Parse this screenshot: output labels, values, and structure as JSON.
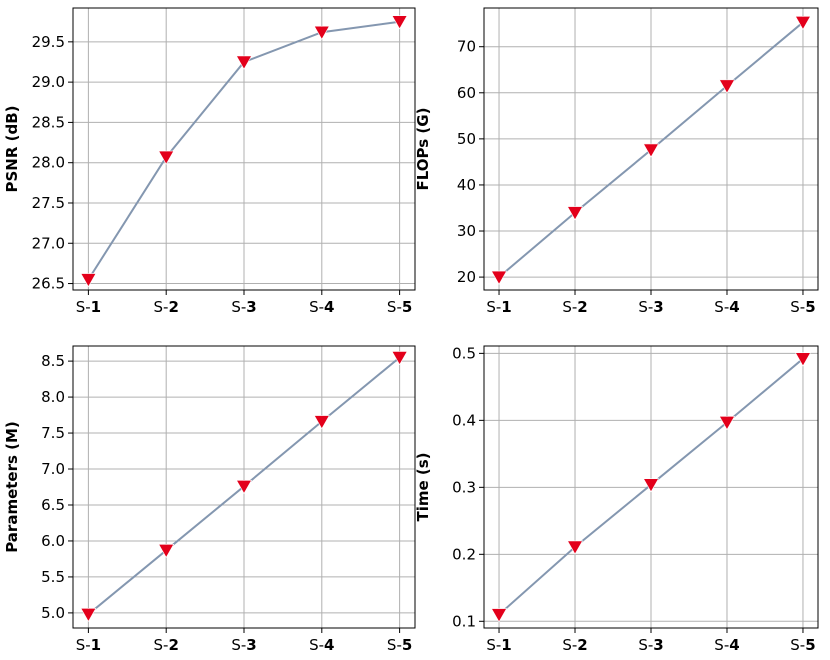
{
  "chart_data": [
    {
      "type": "line",
      "categories": [
        "S-1",
        "S-2",
        "S-3",
        "S-4",
        "S-5"
      ],
      "category_prefix": "S-",
      "category_numbers": [
        "1",
        "2",
        "3",
        "4",
        "5"
      ],
      "values": [
        26.55,
        28.07,
        29.25,
        29.62,
        29.75
      ],
      "ylabel": "PSNR (dB)",
      "ylim": [
        26.42,
        29.92
      ],
      "yticks": [
        26.5,
        27.0,
        27.5,
        28.0,
        28.5,
        29.0,
        29.5
      ],
      "ytick_labels": [
        "26.5",
        "27.0",
        "27.5",
        "28.0",
        "28.5",
        "29.0",
        "29.5"
      ],
      "grid": true,
      "line_color": "#8497b0",
      "marker_color": "#e3001b"
    },
    {
      "type": "line",
      "categories": [
        "S-1",
        "S-2",
        "S-3",
        "S-4",
        "S-5"
      ],
      "category_prefix": "S-",
      "category_numbers": [
        "1",
        "2",
        "3",
        "4",
        "5"
      ],
      "values": [
        20,
        34,
        47.6,
        61.5,
        75.3
      ],
      "ylabel": "FLOPs (G)",
      "ylim": [
        17.2,
        78.4
      ],
      "yticks": [
        20,
        30,
        40,
        50,
        60,
        70
      ],
      "ytick_labels": [
        "20",
        "30",
        "40",
        "50",
        "60",
        "70"
      ],
      "grid": true,
      "line_color": "#8497b0",
      "marker_color": "#e3001b"
    },
    {
      "type": "line",
      "categories": [
        "S-1",
        "S-2",
        "S-3",
        "S-4",
        "S-5"
      ],
      "category_prefix": "S-",
      "category_numbers": [
        "1",
        "2",
        "3",
        "4",
        "5"
      ],
      "values": [
        4.98,
        5.87,
        6.76,
        7.66,
        8.55
      ],
      "ylabel": "Parameters (M)",
      "ylim": [
        4.79,
        8.71
      ],
      "yticks": [
        5.0,
        5.5,
        6.0,
        6.5,
        7.0,
        7.5,
        8.0,
        8.5
      ],
      "ytick_labels": [
        "5.0",
        "5.5",
        "6.0",
        "6.5",
        "7.0",
        "7.5",
        "8.0",
        "8.5"
      ],
      "grid": true,
      "line_color": "#8497b0",
      "marker_color": "#e3001b"
    },
    {
      "type": "line",
      "categories": [
        "S-1",
        "S-2",
        "S-3",
        "S-4",
        "S-5"
      ],
      "category_prefix": "S-",
      "category_numbers": [
        "1",
        "2",
        "3",
        "4",
        "5"
      ],
      "values": [
        0.11,
        0.211,
        0.304,
        0.397,
        0.492
      ],
      "ylabel": "Time (s)",
      "ylim": [
        0.09,
        0.511
      ],
      "yticks": [
        0.1,
        0.2,
        0.3,
        0.4,
        0.5
      ],
      "ytick_labels": [
        "0.1",
        "0.2",
        "0.3",
        "0.4",
        "0.5"
      ],
      "grid": true,
      "line_color": "#8497b0",
      "marker_color": "#e3001b"
    }
  ]
}
